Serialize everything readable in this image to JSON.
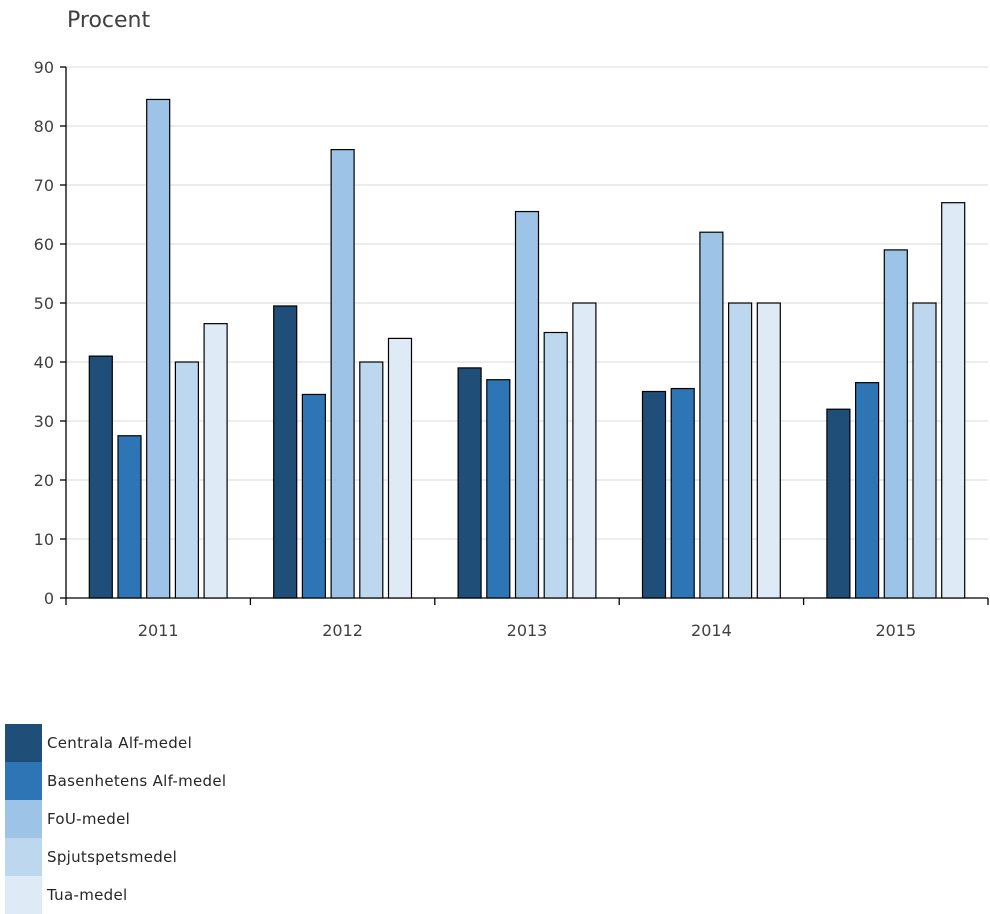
{
  "chart_data": {
    "type": "bar",
    "ylabel": "Procent",
    "xlabel": "",
    "title": "",
    "ylim": [
      0,
      90
    ],
    "yticks": [
      0,
      10,
      20,
      30,
      40,
      50,
      60,
      70,
      80,
      90
    ],
    "grid": true,
    "legend_position": "bottom-left",
    "categories": [
      "2011",
      "2012",
      "2013",
      "2014",
      "2015"
    ],
    "series": [
      {
        "name": "Centrala Alf-medel",
        "color": "#1f4e79",
        "values": [
          41,
          49.5,
          39,
          35,
          32
        ]
      },
      {
        "name": "Basenhetens Alf-medel",
        "color": "#2e75b6",
        "values": [
          27.5,
          34.5,
          37,
          35.5,
          36.5
        ]
      },
      {
        "name": "FoU-medel",
        "color": "#9dc3e6",
        "values": [
          84.5,
          76,
          65.5,
          62,
          59
        ]
      },
      {
        "name": "Spjutspetsmedel",
        "color": "#bdd7ee",
        "values": [
          40,
          40,
          45,
          50,
          50
        ]
      },
      {
        "name": "Tua-medel",
        "color": "#deebf7",
        "values": [
          46.5,
          44,
          50,
          50,
          67
        ]
      }
    ]
  }
}
